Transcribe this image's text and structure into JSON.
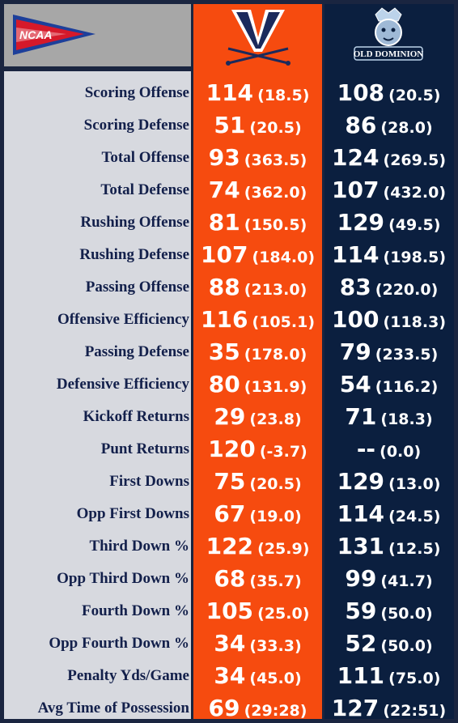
{
  "header": {
    "ncaa_logo_text": "NCAA",
    "odu_logo_text": "OLD DOMINION"
  },
  "rows": [
    {
      "label": "Scoring Offense",
      "uva_rank": "114",
      "uva_avg": "(18.5)",
      "odu_rank": "108",
      "odu_avg": "(20.5)"
    },
    {
      "label": "Scoring Defense",
      "uva_rank": "51",
      "uva_avg": "(20.5)",
      "odu_rank": "86",
      "odu_avg": "(28.0)"
    },
    {
      "label": "Total Offense",
      "uva_rank": "93",
      "uva_avg": "(363.5)",
      "odu_rank": "124",
      "odu_avg": "(269.5)"
    },
    {
      "label": "Total Defense",
      "uva_rank": "74",
      "uva_avg": "(362.0)",
      "odu_rank": "107",
      "odu_avg": "(432.0)"
    },
    {
      "label": "Rushing Offense",
      "uva_rank": "81",
      "uva_avg": "(150.5)",
      "odu_rank": "129",
      "odu_avg": "(49.5)"
    },
    {
      "label": "Rushing Defense",
      "uva_rank": "107",
      "uva_avg": "(184.0)",
      "odu_rank": "114",
      "odu_avg": "(198.5)"
    },
    {
      "label": "Passing Offense",
      "uva_rank": "88",
      "uva_avg": "(213.0)",
      "odu_rank": "83",
      "odu_avg": "(220.0)"
    },
    {
      "label": "Offensive Efficiency",
      "uva_rank": "116",
      "uva_avg": "(105.1)",
      "odu_rank": "100",
      "odu_avg": "(118.3)"
    },
    {
      "label": "Passing Defense",
      "uva_rank": "35",
      "uva_avg": "(178.0)",
      "odu_rank": "79",
      "odu_avg": "(233.5)"
    },
    {
      "label": "Defensive Efficiency",
      "uva_rank": "80",
      "uva_avg": "(131.9)",
      "odu_rank": "54",
      "odu_avg": "(116.2)"
    },
    {
      "label": "Kickoff Returns",
      "uva_rank": "29",
      "uva_avg": "(23.8)",
      "odu_rank": "71",
      "odu_avg": "(18.3)"
    },
    {
      "label": "Punt Returns",
      "uva_rank": "120",
      "uva_avg": "(-3.7)",
      "odu_rank": "--",
      "odu_avg": "(0.0)"
    },
    {
      "label": "First Downs",
      "uva_rank": "75",
      "uva_avg": "(20.5)",
      "odu_rank": "129",
      "odu_avg": "(13.0)"
    },
    {
      "label": "Opp First Downs",
      "uva_rank": "67",
      "uva_avg": "(19.0)",
      "odu_rank": "114",
      "odu_avg": "(24.5)"
    },
    {
      "label": "Third Down %",
      "uva_rank": "122",
      "uva_avg": "(25.9)",
      "odu_rank": "131",
      "odu_avg": "(12.5)"
    },
    {
      "label": "Opp Third Down %",
      "uva_rank": "68",
      "uva_avg": "(35.7)",
      "odu_rank": "99",
      "odu_avg": "(41.7)"
    },
    {
      "label": "Fourth Down %",
      "uva_rank": "105",
      "uva_avg": "(25.0)",
      "odu_rank": "59",
      "odu_avg": "(50.0)"
    },
    {
      "label": "Opp Fourth Down %",
      "uva_rank": "34",
      "uva_avg": "(33.3)",
      "odu_rank": "52",
      "odu_avg": "(50.0)"
    },
    {
      "label": "Penalty Yds/Game",
      "uva_rank": "34",
      "uva_avg": "(45.0)",
      "odu_rank": "111",
      "odu_avg": "(75.0)"
    },
    {
      "label": "Avg Time of Possession",
      "uva_rank": "69",
      "uva_avg": "(29:28)",
      "odu_rank": "127",
      "odu_avg": "(22:51)"
    }
  ],
  "colors": {
    "uva_orange": "#f64b0f",
    "odu_navy": "#0b1f3f",
    "label_bg": "#d7d9df",
    "label_text": "#13204b"
  }
}
